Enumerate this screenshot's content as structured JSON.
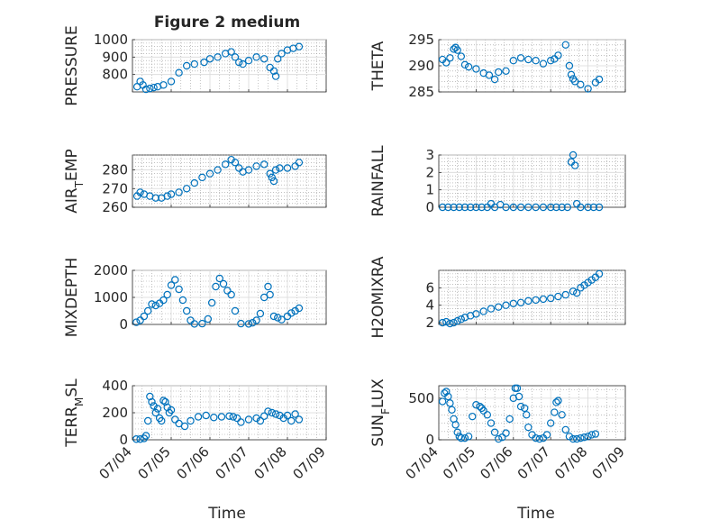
{
  "figure": {
    "title": "Figure 2 medium",
    "marker_color": "#0072BD",
    "xlabel": "Time",
    "xticks": [
      "07/04",
      "07/05",
      "07/06",
      "07/07",
      "07/08",
      "07/09"
    ],
    "xrange_days": [
      4.0,
      9.0
    ]
  },
  "chart_data": [
    {
      "id": "pressure",
      "type": "scatter",
      "ylabel": "PRESSURE",
      "ylim": [
        700,
        1000
      ],
      "yticks": [
        800,
        900,
        1000
      ],
      "grid": true,
      "title": "Figure 2 medium",
      "x": [
        4.12,
        4.2,
        4.27,
        4.35,
        4.45,
        4.55,
        4.65,
        4.8,
        5.0,
        5.2,
        5.4,
        5.6,
        5.85,
        6.0,
        6.2,
        6.4,
        6.55,
        6.65,
        6.75,
        6.85,
        7.0,
        7.2,
        7.4,
        7.55,
        7.65,
        7.7,
        7.75,
        7.85,
        8.0,
        8.15,
        8.3
      ],
      "y": [
        730,
        760,
        740,
        715,
        720,
        725,
        730,
        740,
        760,
        810,
        850,
        860,
        870,
        890,
        900,
        920,
        930,
        900,
        870,
        860,
        880,
        900,
        890,
        840,
        820,
        790,
        890,
        920,
        940,
        950,
        960
      ]
    },
    {
      "id": "theta",
      "type": "scatter",
      "ylabel": "THETA",
      "ylim": [
        285,
        295
      ],
      "yticks": [
        285,
        290,
        295
      ],
      "grid": true,
      "x": [
        4.1,
        4.2,
        4.3,
        4.4,
        4.45,
        4.5,
        4.6,
        4.7,
        4.8,
        5.0,
        5.2,
        5.35,
        5.5,
        5.6,
        5.8,
        6.0,
        6.2,
        6.4,
        6.6,
        6.8,
        7.0,
        7.1,
        7.2,
        7.4,
        7.5,
        7.55,
        7.6,
        7.65,
        7.8,
        8.0,
        8.2,
        8.3
      ],
      "y": [
        291.2,
        290.6,
        291.5,
        293.2,
        293.5,
        293.0,
        291.8,
        290.2,
        289.8,
        289.4,
        288.6,
        288.2,
        287.4,
        288.8,
        289.0,
        291.0,
        291.5,
        291.2,
        291.0,
        290.4,
        291.0,
        291.3,
        292.0,
        294.0,
        290.0,
        288.3,
        287.5,
        287.0,
        286.4,
        285.6,
        286.8,
        287.4
      ]
    },
    {
      "id": "air_temp",
      "type": "scatter",
      "ylabel": "AIR",
      "ylabel_sub": "T",
      "ylabel_suffix": "EMP",
      "ylim": [
        260,
        288
      ],
      "yticks": [
        260,
        270,
        280
      ],
      "grid": true,
      "x": [
        4.12,
        4.2,
        4.3,
        4.45,
        4.6,
        4.75,
        4.9,
        5.0,
        5.2,
        5.4,
        5.6,
        5.8,
        6.0,
        6.2,
        6.4,
        6.55,
        6.65,
        6.75,
        6.85,
        7.0,
        7.2,
        7.4,
        7.55,
        7.6,
        7.65,
        7.7,
        7.8,
        8.0,
        8.2,
        8.3
      ],
      "y": [
        266,
        268,
        267,
        266,
        265,
        265,
        266,
        267,
        268,
        270,
        273,
        276,
        278,
        280,
        283,
        285.5,
        284,
        281,
        279,
        280,
        282,
        283,
        278,
        276,
        274,
        280,
        281,
        281,
        282,
        284
      ]
    },
    {
      "id": "rainfall",
      "type": "scatter",
      "ylabel": "RAINFALL",
      "ylim": [
        0,
        3
      ],
      "yticks": [
        0,
        1,
        2,
        3
      ],
      "grid": true,
      "x": [
        4.1,
        4.25,
        4.4,
        4.55,
        4.7,
        4.85,
        5.0,
        5.15,
        5.3,
        5.4,
        5.5,
        5.65,
        5.8,
        6.0,
        6.2,
        6.4,
        6.6,
        6.8,
        7.0,
        7.15,
        7.3,
        7.45,
        7.55,
        7.6,
        7.65,
        7.7,
        7.8,
        8.0,
        8.15,
        8.3
      ],
      "y": [
        0,
        0,
        0,
        0,
        0,
        0,
        0,
        0,
        0,
        0.2,
        0,
        0.15,
        0,
        0,
        0,
        0,
        0,
        0,
        0,
        0,
        0,
        0,
        2.6,
        3.0,
        2.4,
        0.2,
        0,
        0,
        0,
        0
      ]
    },
    {
      "id": "mixdepth",
      "type": "scatter",
      "ylabel": "MIXDEPTH",
      "ylim": [
        0,
        2000
      ],
      "yticks": [
        0,
        1000,
        2000
      ],
      "grid": true,
      "x": [
        4.1,
        4.2,
        4.3,
        4.4,
        4.5,
        4.6,
        4.7,
        4.8,
        4.9,
        5.0,
        5.1,
        5.2,
        5.3,
        5.4,
        5.5,
        5.6,
        5.8,
        5.95,
        6.05,
        6.15,
        6.25,
        6.35,
        6.45,
        6.55,
        6.65,
        6.8,
        7.0,
        7.1,
        7.2,
        7.3,
        7.4,
        7.5,
        7.55,
        7.65,
        7.75,
        7.85,
        8.0,
        8.1,
        8.2,
        8.3
      ],
      "y": [
        80,
        150,
        300,
        500,
        750,
        700,
        780,
        900,
        1100,
        1450,
        1650,
        1300,
        900,
        500,
        150,
        20,
        30,
        200,
        800,
        1400,
        1700,
        1500,
        1250,
        1100,
        500,
        30,
        20,
        60,
        150,
        400,
        1000,
        1400,
        1100,
        300,
        250,
        180,
        300,
        420,
        500,
        600
      ]
    },
    {
      "id": "h2omixra",
      "type": "scatter",
      "ylabel": "H2OMIXRA",
      "ylim": [
        1.8,
        8
      ],
      "yticks": [
        2,
        4,
        6
      ],
      "grid": true,
      "x": [
        4.1,
        4.2,
        4.3,
        4.4,
        4.5,
        4.6,
        4.7,
        4.85,
        5.0,
        5.2,
        5.4,
        5.6,
        5.8,
        6.0,
        6.2,
        6.4,
        6.6,
        6.8,
        7.0,
        7.2,
        7.4,
        7.6,
        7.7,
        7.8,
        7.9,
        8.0,
        8.1,
        8.2,
        8.3
      ],
      "y": [
        2.0,
        2.1,
        1.9,
        2.0,
        2.2,
        2.4,
        2.6,
        2.8,
        3.0,
        3.3,
        3.6,
        3.8,
        4.0,
        4.2,
        4.3,
        4.5,
        4.6,
        4.7,
        4.8,
        5.0,
        5.2,
        5.6,
        5.4,
        6.0,
        6.3,
        6.6,
        6.9,
        7.2,
        7.6
      ]
    },
    {
      "id": "terr_msl",
      "type": "scatter",
      "ylabel": "TERR",
      "ylabel_sub": "M",
      "ylabel_suffix": "SL",
      "ylim": [
        0,
        400
      ],
      "yticks": [
        0,
        200,
        400
      ],
      "grid": true,
      "x": [
        4.1,
        4.2,
        4.3,
        4.35,
        4.4,
        4.45,
        4.5,
        4.55,
        4.6,
        4.65,
        4.7,
        4.75,
        4.8,
        4.85,
        4.9,
        4.95,
        5.0,
        5.1,
        5.2,
        5.35,
        5.5,
        5.7,
        5.9,
        6.1,
        6.3,
        6.5,
        6.6,
        6.7,
        6.8,
        7.0,
        7.2,
        7.3,
        7.4,
        7.5,
        7.6,
        7.7,
        7.8,
        7.9,
        8.0,
        8.1,
        8.2,
        8.3
      ],
      "y": [
        5,
        5,
        10,
        30,
        140,
        320,
        280,
        250,
        200,
        230,
        160,
        140,
        290,
        280,
        240,
        200,
        220,
        150,
        120,
        100,
        140,
        170,
        180,
        165,
        170,
        175,
        170,
        160,
        130,
        150,
        160,
        140,
        175,
        210,
        200,
        190,
        180,
        160,
        180,
        140,
        190,
        150
      ]
    },
    {
      "id": "sun_flux",
      "type": "scatter",
      "ylabel": "SUN",
      "ylabel_sub": "F",
      "ylabel_suffix": "LUX",
      "ylim": [
        0,
        650
      ],
      "yticks": [
        0,
        500
      ],
      "grid": true,
      "x": [
        4.1,
        4.15,
        4.2,
        4.25,
        4.3,
        4.35,
        4.4,
        4.45,
        4.5,
        4.55,
        4.6,
        4.7,
        4.8,
        4.9,
        5.0,
        5.1,
        5.15,
        5.2,
        5.3,
        5.4,
        5.5,
        5.6,
        5.7,
        5.8,
        5.9,
        6.0,
        6.05,
        6.1,
        6.15,
        6.2,
        6.3,
        6.35,
        6.4,
        6.5,
        6.6,
        6.7,
        6.8,
        6.9,
        7.0,
        7.1,
        7.15,
        7.2,
        7.3,
        7.4,
        7.5,
        7.6,
        7.7,
        7.8,
        7.9,
        8.0,
        8.1,
        8.2
      ],
      "y": [
        460,
        560,
        580,
        520,
        440,
        360,
        250,
        180,
        90,
        40,
        20,
        20,
        40,
        280,
        420,
        400,
        380,
        350,
        300,
        200,
        90,
        10,
        30,
        80,
        250,
        500,
        620,
        620,
        520,
        400,
        380,
        300,
        150,
        60,
        20,
        10,
        20,
        60,
        200,
        330,
        450,
        470,
        300,
        120,
        40,
        10,
        10,
        20,
        30,
        40,
        60,
        70
      ]
    }
  ]
}
